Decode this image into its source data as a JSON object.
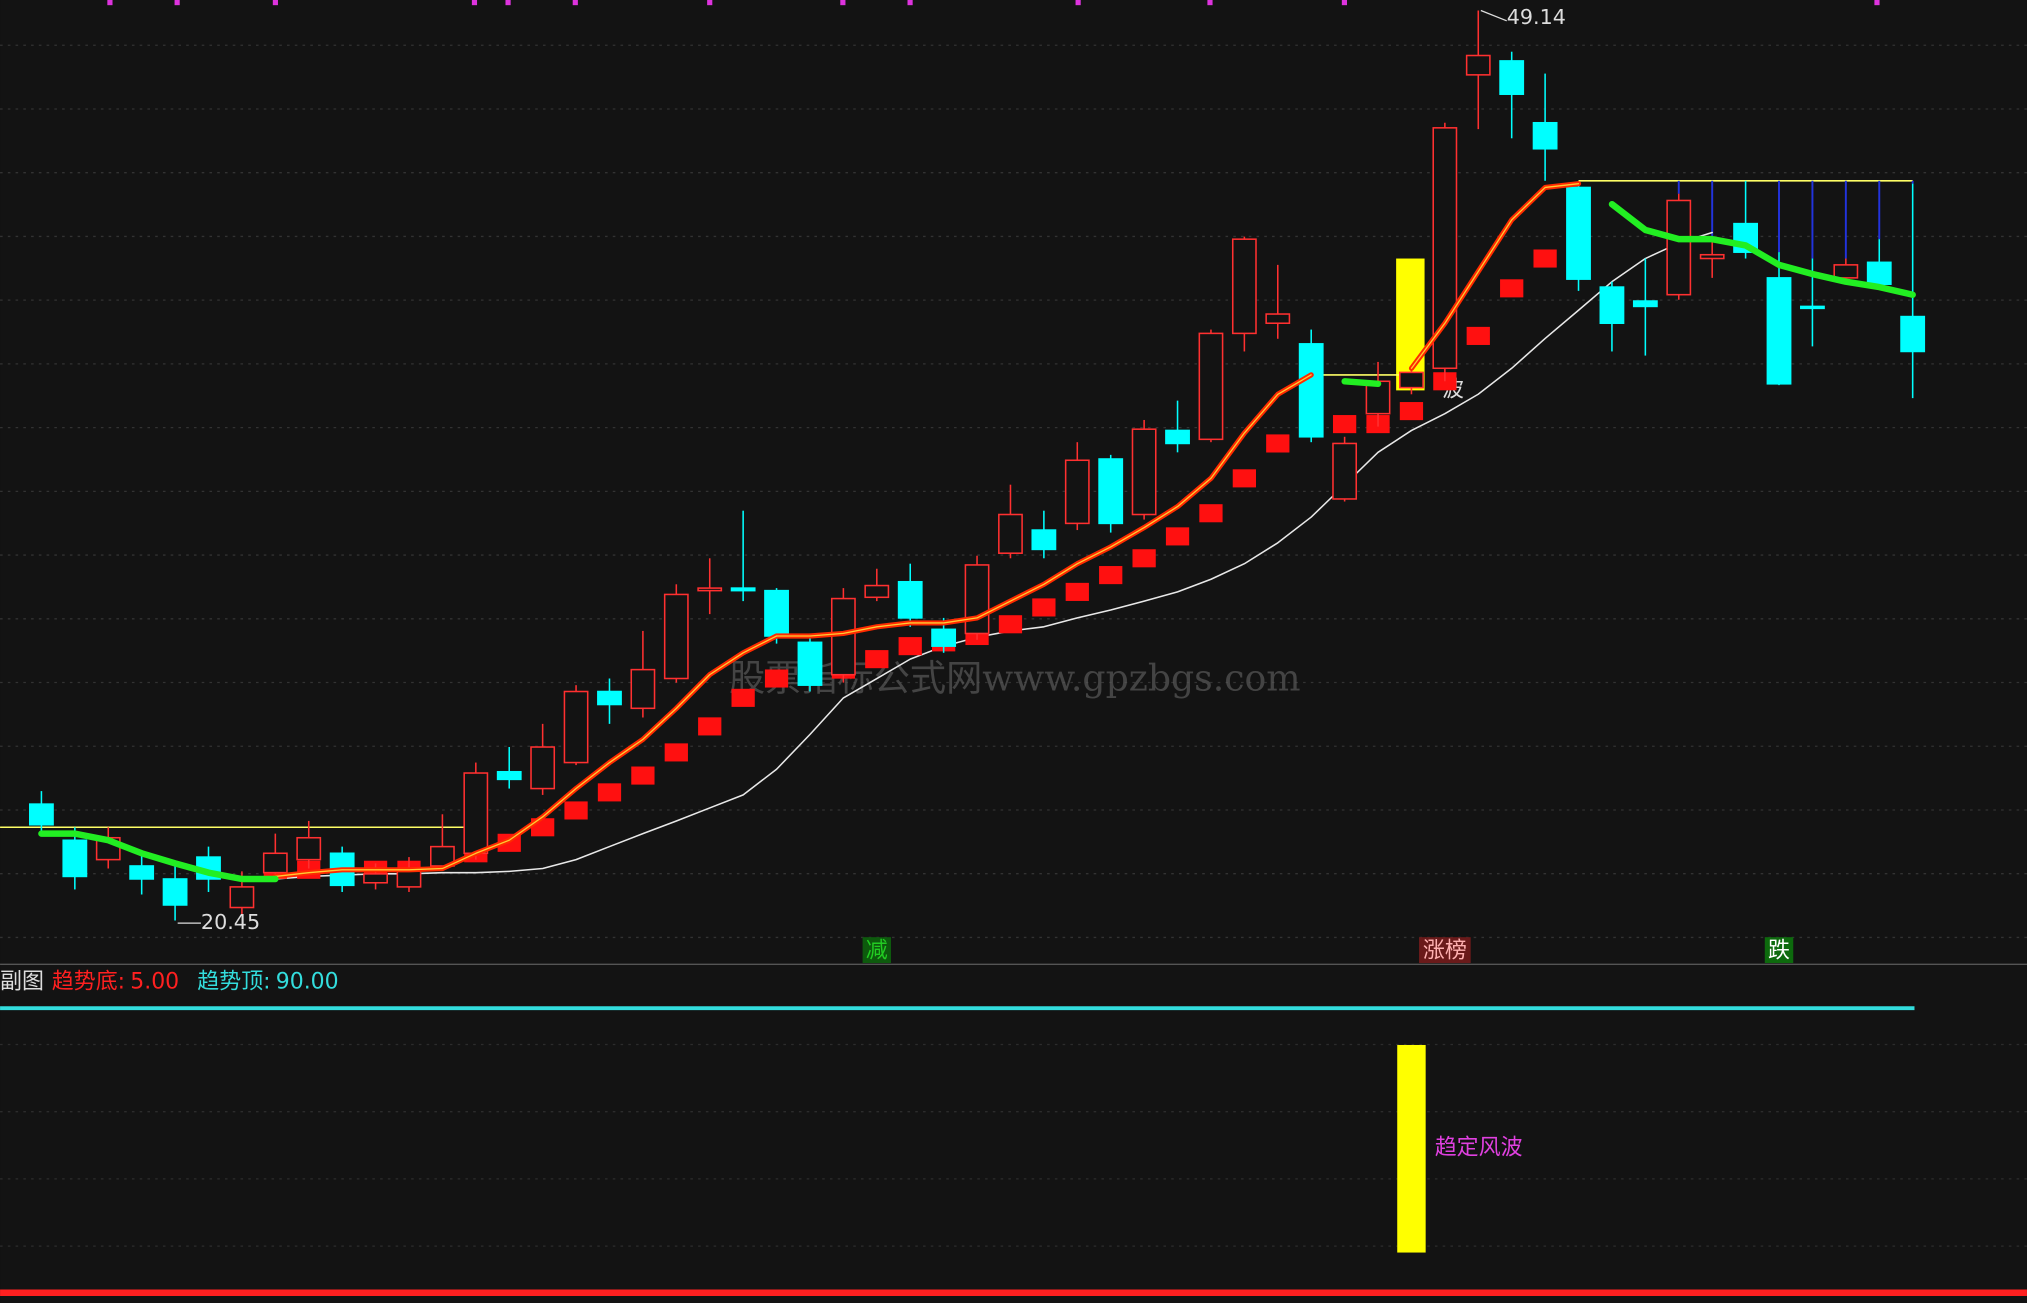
{
  "chart_data": {
    "type": "candlestick",
    "ylim": [
      19.11,
      49.47
    ],
    "open": [
      24.12,
      22.98,
      22.37,
      22.17,
      21.76,
      22.45,
      20.86,
      21.96,
      22.37,
      22.57,
      21.64,
      21.51,
      22.17,
      22.57,
      25.14,
      24.61,
      25.43,
      27.67,
      27.14,
      28.08,
      30.85,
      30.93,
      30.85,
      29.22,
      28.2,
      30.64,
      31.13,
      29.63,
      29.5,
      32.03,
      32.76,
      32.97,
      35.0,
      33.25,
      35.9,
      35.62,
      38.96,
      39.28,
      38.63,
      33.74,
      36.43,
      37.25,
      37.86,
      47.11,
      47.55,
      45.6,
      43.56,
      40.42,
      39.98,
      40.18,
      41.32,
      42.42,
      40.71,
      39.81,
      40.71,
      41.2,
      39.49
    ],
    "high": [
      24.53,
      23.39,
      23.39,
      22.57,
      22.25,
      22.78,
      22.0,
      23.19,
      23.59,
      22.78,
      22.25,
      22.45,
      23.8,
      25.43,
      25.92,
      26.65,
      27.87,
      28.08,
      29.58,
      31.05,
      31.87,
      33.37,
      30.93,
      29.5,
      30.93,
      31.54,
      31.7,
      29.99,
      31.95,
      34.19,
      33.37,
      35.53,
      35.13,
      36.23,
      36.84,
      39.08,
      42.01,
      41.12,
      39.08,
      35.7,
      38.06,
      37.86,
      45.6,
      49.14,
      47.84,
      47.15,
      43.64,
      40.59,
      41.32,
      43.36,
      42.01,
      43.77,
      41.52,
      41.32,
      41.32,
      41.93,
      43.68
    ],
    "low": [
      23.19,
      21.43,
      22.09,
      21.27,
      20.45,
      21.35,
      20.62,
      21.76,
      22.09,
      21.35,
      21.43,
      21.35,
      22.09,
      22.37,
      24.61,
      24.41,
      25.35,
      26.65,
      26.85,
      27.95,
      30.11,
      30.52,
      29.18,
      27.67,
      27.95,
      30.52,
      29.71,
      28.89,
      29.3,
      31.87,
      31.87,
      32.76,
      32.68,
      33.09,
      35.21,
      35.53,
      38.39,
      38.79,
      35.53,
      33.66,
      36.02,
      37.04,
      37.45,
      45.4,
      45.11,
      43.77,
      40.3,
      38.39,
      38.26,
      40.02,
      40.71,
      41.32,
      37.33,
      38.55,
      40.59,
      40.42,
      36.92
    ],
    "close": [
      23.47,
      21.84,
      23.06,
      21.76,
      20.94,
      21.76,
      21.51,
      22.57,
      23.06,
      21.56,
      21.92,
      22.05,
      22.78,
      25.1,
      24.9,
      25.92,
      27.67,
      27.26,
      28.36,
      30.73,
      30.93,
      30.85,
      29.42,
      27.87,
      30.6,
      31.01,
      29.99,
      29.1,
      31.66,
      33.25,
      32.15,
      34.96,
      32.97,
      35.94,
      35.49,
      38.96,
      41.93,
      39.57,
      35.7,
      35.49,
      37.45,
      37.73,
      45.44,
      47.72,
      46.5,
      44.78,
      40.67,
      39.28,
      39.81,
      43.15,
      41.44,
      41.52,
      37.37,
      39.77,
      41.12,
      40.51,
      38.39
    ],
    "up_color": "#ff3030",
    "down_color": "#00ffff",
    "series": [
      {
        "color": "#e8e8e8",
        "values": [
          null,
          null,
          null,
          null,
          null,
          null,
          null,
          21.76,
          21.84,
          21.88,
          21.92,
          21.92,
          21.96,
          21.96,
          22.0,
          22.09,
          22.37,
          22.78,
          23.19,
          23.59,
          24.0,
          24.41,
          25.22,
          26.32,
          27.47,
          28.08,
          28.69,
          29.1,
          29.38,
          29.58,
          29.71,
          29.99,
          30.24,
          30.52,
          30.81,
          31.21,
          31.7,
          32.36,
          33.17,
          34.19,
          35.21,
          35.9,
          36.43,
          37.04,
          37.86,
          38.8,
          39.69,
          40.59,
          41.32,
          41.81,
          42.14,
          null,
          null,
          null,
          null,
          null,
          null
        ]
      },
      {
        "color": "#ff2a00",
        "values": [
          null,
          null,
          null,
          null,
          null,
          null,
          null,
          21.84,
          21.96,
          22.05,
          22.05,
          22.05,
          22.09,
          22.57,
          22.98,
          23.72,
          24.61,
          25.43,
          26.16,
          27.14,
          28.2,
          28.89,
          29.42,
          29.42,
          29.5,
          29.71,
          29.83,
          29.83,
          29.99,
          30.52,
          31.05,
          31.7,
          32.23,
          32.84,
          33.5,
          34.39,
          35.82,
          37.04,
          37.65,
          null,
          null,
          37.86,
          39.28,
          40.91,
          42.54,
          43.56,
          43.68,
          null,
          null,
          null,
          null,
          null,
          null,
          null,
          null,
          null,
          null
        ]
      },
      {
        "color": "#22ee22",
        "values": [
          23.19,
          23.19,
          22.98,
          22.57,
          22.25,
          21.96,
          21.76,
          21.76,
          null,
          null,
          null,
          null,
          null,
          null,
          null,
          null,
          null,
          null,
          null,
          null,
          null,
          null,
          null,
          null,
          null,
          null,
          null,
          null,
          null,
          null,
          null,
          null,
          null,
          null,
          null,
          null,
          null,
          null,
          null,
          37.45,
          37.37,
          null,
          null,
          null,
          null,
          null,
          null,
          43.03,
          42.22,
          41.93,
          41.93,
          41.73,
          41.12,
          40.83,
          40.59,
          40.42,
          40.18
        ]
      }
    ],
    "blocks": {
      "color": "#ff1010",
      "values": [
        null,
        null,
        null,
        null,
        null,
        null,
        null,
        22.05,
        22.05,
        22.05,
        22.05,
        22.05,
        22.49,
        22.57,
        22.9,
        23.39,
        23.92,
        24.49,
        25.02,
        25.75,
        26.57,
        27.47,
        28.08,
        28.2,
        28.36,
        28.69,
        29.1,
        29.22,
        29.42,
        29.79,
        30.32,
        30.81,
        31.34,
        31.87,
        32.56,
        33.29,
        34.39,
        35.49,
        36.02,
        36.1,
        36.1,
        36.51,
        37.45,
        38.88,
        40.38,
        41.32,
        41.52,
        null,
        null,
        null,
        null,
        null,
        null,
        null,
        null,
        null,
        null
      ]
    },
    "levels": [
      {
        "value": 23.39,
        "from": 0,
        "to": 13,
        "color": "#ffff66"
      },
      {
        "value": 37.65,
        "from": 38,
        "to": 41,
        "color": "#ffff66"
      },
      {
        "value": 43.77,
        "from": 46,
        "to": 56,
        "color": "#ffff66"
      }
    ],
    "signals": [
      {
        "text": "减",
        "index": 25,
        "color": "#22cc22",
        "background": "#0d5a0d"
      },
      {
        "text": "涨榜",
        "index": 42,
        "color": "#ffb0b0",
        "background": "#6a1a1a"
      },
      {
        "text": "跌",
        "index": 52,
        "color": "#ffffff",
        "background": "#0d6a0d"
      }
    ],
    "mark_text": "波",
    "watermark": "股票指标公式网www.gpzbgs.com",
    "sub": {
      "title": "副图",
      "ylim": [
        0,
        100
      ],
      "levels": [
        {
          "name": "趋势底:",
          "value": 5,
          "label": "5.00",
          "color": "#ff2020"
        },
        {
          "name": "趋势顶:",
          "value": 90,
          "label": "90.00",
          "color": "#33dddd"
        }
      ],
      "bars": [
        {
          "index": 41,
          "from": 17,
          "to": 79,
          "label": "趋定风波",
          "color": "#ffff00",
          "label_color": "#e040e0"
        }
      ]
    }
  }
}
